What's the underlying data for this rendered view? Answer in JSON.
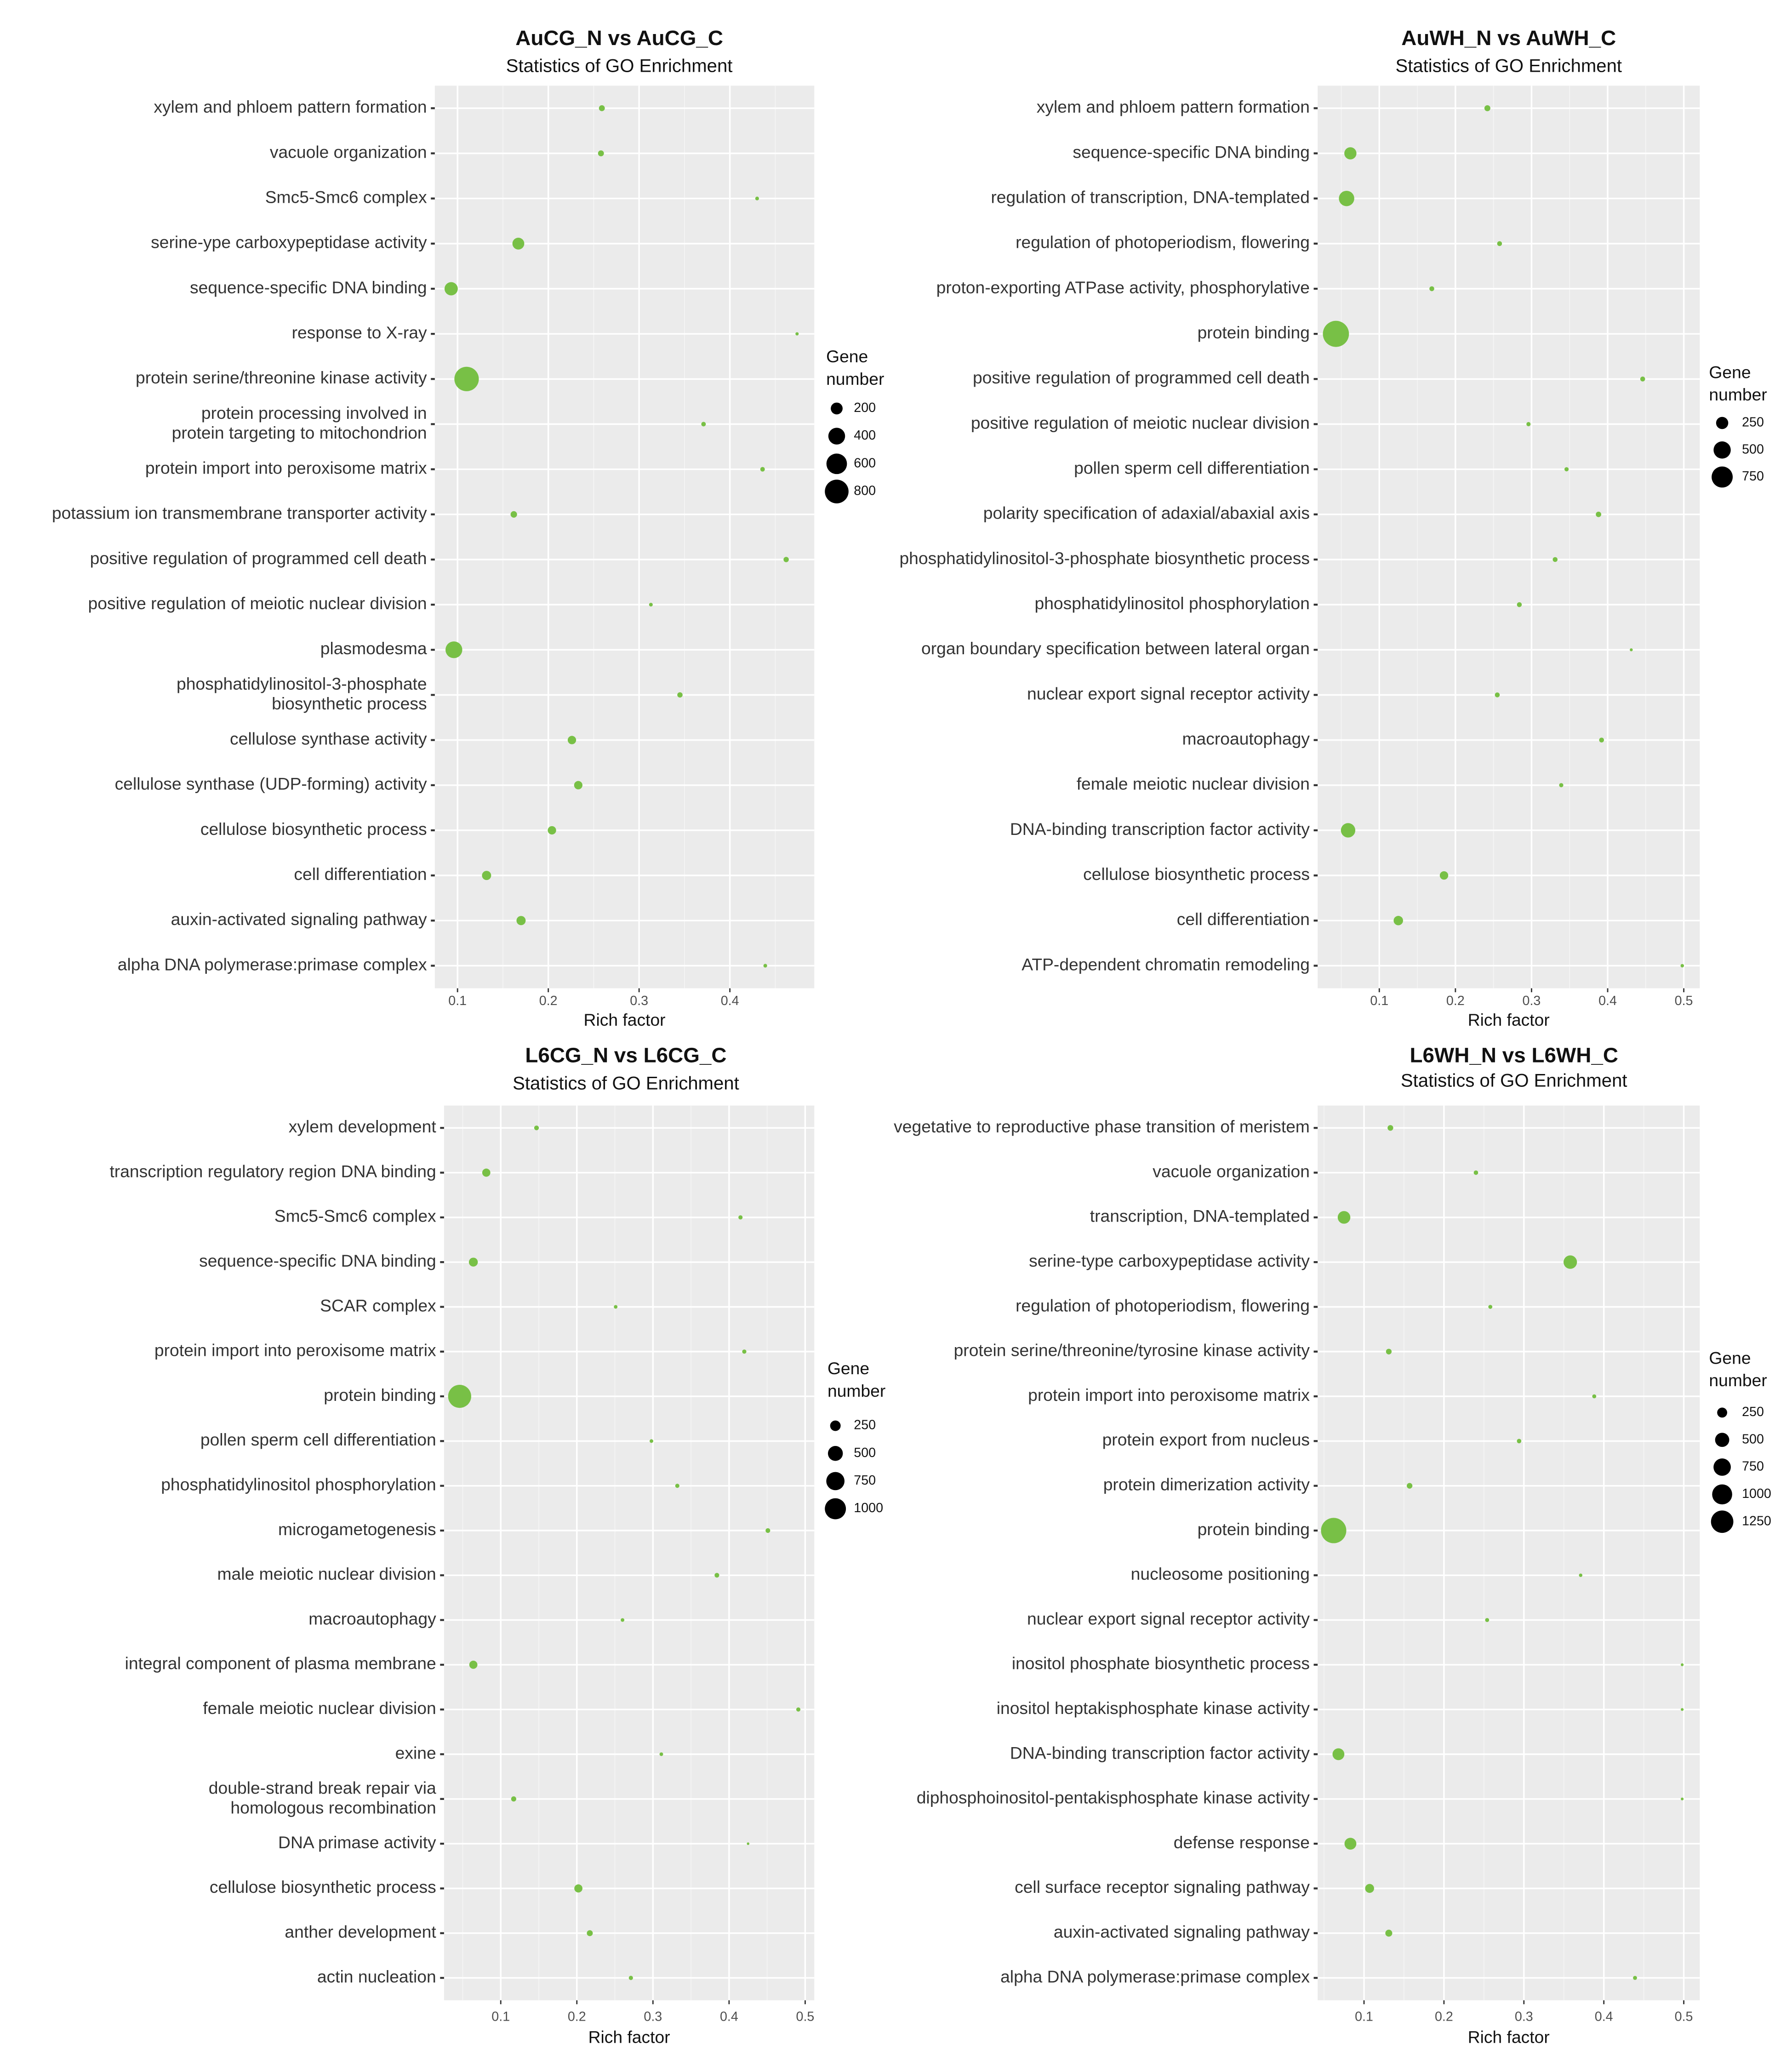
{
  "chart_data": [
    {
      "type": "bubble",
      "title": "AuCG_N vs AuCG_C",
      "subtitle": "Statistics of GO Enrichment",
      "x_label": "Rich factor",
      "categories": [
        "xylem and phloem pattern formation",
        "vacuole organization",
        "Smc5-Smc6 complex",
        "serine-ype carboxypeptidase activity",
        "sequence-specific DNA binding",
        "response to X-ray",
        "protein serine/threonine kinase activity",
        "protein processing involved in\nprotein targeting to mitochondrion",
        "protein import into peroxisome matrix",
        "potassium ion transmembrane transporter activity",
        "positive regulation of programmed cell death",
        "positive regulation of meiotic nuclear division",
        "plasmodesma",
        "phosphatidylinositol-3-phosphate\nbiosynthetic process",
        "cellulose synthase activity",
        "cellulose synthase (UDP-forming) activity",
        "cellulose biosynthetic process",
        "cell differentiation",
        "auxin-activated signaling pathway",
        "alpha DNA polymerase:primase complex"
      ],
      "values": [
        0.259,
        0.258,
        0.43,
        0.167,
        0.093,
        0.474,
        0.11,
        0.371,
        0.436,
        0.162,
        0.462,
        0.313,
        0.096,
        0.345,
        0.226,
        0.233,
        0.204,
        0.132,
        0.17,
        0.439
      ],
      "sizes": [
        50,
        50,
        20,
        200,
        250,
        15,
        850,
        30,
        30,
        60,
        40,
        20,
        400,
        40,
        100,
        100,
        100,
        120,
        120,
        20
      ],
      "size_legend_title": "Gene\nnumber",
      "size_legend": [
        200,
        400,
        600,
        800
      ],
      "xlim": [
        0.075,
        0.493
      ],
      "xticks": [
        0.1,
        0.2,
        0.3,
        0.4
      ],
      "color": "#78c046",
      "grid": true
    },
    {
      "type": "bubble",
      "title": "AuWH_N vs AuWH_C",
      "subtitle": "Statistics of GO Enrichment",
      "x_label": "Rich factor",
      "categories": [
        "xylem and phloem pattern formation",
        "sequence-specific DNA binding",
        "regulation of transcription, DNA-templated",
        "regulation of photoperiodism, flowering",
        "proton-exporting ATPase activity, phosphorylative",
        "protein binding",
        "positive regulation of programmed cell death",
        "positive regulation of meiotic nuclear division",
        "pollen sperm cell differentiation",
        "polarity specification of adaxial/abaxial axis",
        "phosphatidylinositol-3-phosphate biosynthetic process",
        "phosphatidylinositol phosphorylation",
        "organ boundary specification between lateral organ",
        "nuclear export signal receptor activity",
        "macroautophagy",
        "female meiotic nuclear division",
        "DNA-binding transcription factor activity",
        "cellulose biosynthetic process",
        "cell differentiation",
        "ATP-dependent chromatin remodeling"
      ],
      "values": [
        0.242,
        0.062,
        0.057,
        0.258,
        0.169,
        0.043,
        0.446,
        0.296,
        0.346,
        0.388,
        0.331,
        0.284,
        0.431,
        0.255,
        0.392,
        0.339,
        0.059,
        0.185,
        0.125,
        0.498
      ],
      "sizes": [
        60,
        250,
        400,
        40,
        40,
        1150,
        40,
        30,
        30,
        50,
        40,
        40,
        15,
        40,
        40,
        30,
        350,
        120,
        150,
        20
      ],
      "size_legend_title": "Gene\nnumber",
      "size_legend": [
        250,
        500,
        750
      ],
      "xlim": [
        0.019,
        0.521
      ],
      "xticks": [
        0.1,
        0.2,
        0.3,
        0.4,
        0.5
      ],
      "color": "#78c046",
      "grid": true
    },
    {
      "type": "bubble",
      "title": "L6CG_N vs L6CG_C",
      "subtitle": "Statistics of GO Enrichment",
      "x_label": "Rich factor",
      "categories": [
        "xylem development",
        "transcription regulatory region DNA binding",
        "Smc5-Smc6 complex",
        "sequence-specific DNA binding",
        "SCAR complex",
        "protein import into peroxisome matrix",
        "protein binding",
        "pollen sperm cell differentiation",
        "phosphatidylinositol phosphorylation",
        "microgametogenesis",
        "male meiotic nuclear division",
        "macroautophagy",
        "integral component of plasma membrane",
        "female meiotic nuclear division",
        "exine",
        "double-strand break repair via\nhomologous recombination",
        "DNA primase activity",
        "cellulose biosynthetic process",
        "anther development",
        "actin nucleation"
      ],
      "values": [
        0.147,
        0.081,
        0.415,
        0.064,
        0.251,
        0.42,
        0.046,
        0.298,
        0.332,
        0.451,
        0.384,
        0.26,
        0.064,
        0.491,
        0.311,
        0.117,
        0.425,
        0.202,
        0.217,
        0.271
      ],
      "sizes": [
        50,
        150,
        40,
        180,
        30,
        40,
        1200,
        30,
        40,
        50,
        50,
        30,
        150,
        40,
        30,
        60,
        15,
        150,
        80,
        40
      ],
      "size_legend_title": "Gene\nnumber",
      "size_legend": [
        250,
        500,
        750,
        1000
      ],
      "xlim": [
        0.0255,
        0.512
      ],
      "xticks": [
        0.1,
        0.2,
        0.3,
        0.4,
        0.5
      ],
      "color": "#78c046",
      "grid": true
    },
    {
      "type": "bubble",
      "title": "L6WH_N vs L6WH_C",
      "subtitle": "Statistics of GO Enrichment",
      "x_label": "Rich factor",
      "categories": [
        "vegetative to reproductive phase transition of meristem",
        "vacuole organization",
        "transcription, DNA-templated",
        "serine-type carboxypeptidase activity",
        "regulation of photoperiodism, flowering",
        "protein serine/threonine/tyrosine kinase activity",
        "protein import into peroxisome matrix",
        "protein export from nucleus",
        "protein dimerization activity",
        "protein binding",
        "nucleosome positioning",
        "nuclear export signal receptor activity",
        "inositol phosphate biosynthetic process",
        "inositol heptakisphosphate kinase activity",
        "DNA-binding transcription factor activity",
        "diphosphoinositol-pentakisphosphate kinase activity",
        "defense response",
        "cell surface receptor signaling pathway",
        "auxin-activated signaling pathway",
        "alpha DNA polymerase:primase complex"
      ],
      "values": [
        0.133,
        0.24,
        0.075,
        0.358,
        0.258,
        0.131,
        0.388,
        0.294,
        0.157,
        0.062,
        0.371,
        0.254,
        0.498,
        0.498,
        0.068,
        0.498,
        0.083,
        0.107,
        0.131,
        0.439
      ],
      "sizes": [
        80,
        50,
        400,
        450,
        40,
        80,
        40,
        50,
        80,
        1600,
        30,
        40,
        20,
        20,
        350,
        20,
        350,
        200,
        120,
        40
      ],
      "size_legend_title": "Gene\nnumber",
      "size_legend": [
        250,
        500,
        750,
        1000,
        1250
      ],
      "xlim": [
        0.042,
        0.52
      ],
      "xticks": [
        0.1,
        0.2,
        0.3,
        0.4,
        0.5
      ],
      "color": "#78c046",
      "grid": true
    }
  ]
}
